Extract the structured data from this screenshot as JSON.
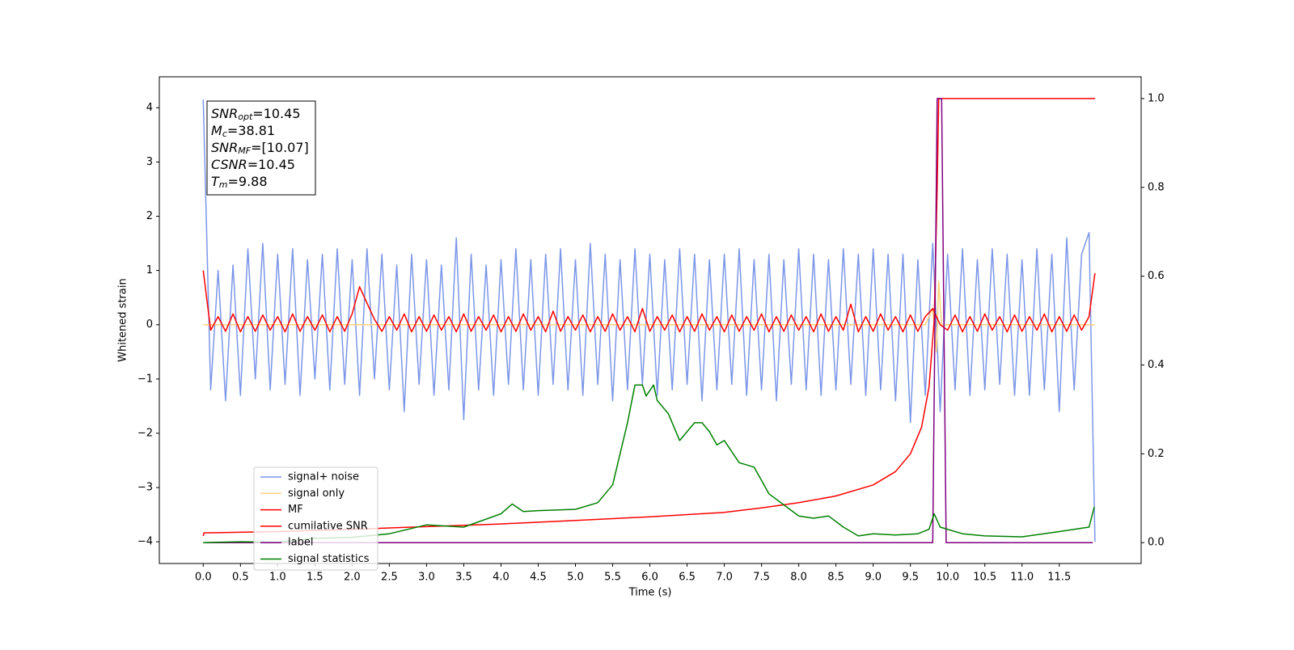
{
  "chart_data": {
    "type": "line",
    "xlabel": "Time (s)",
    "ylabel": "Whitened strain",
    "xlim": [
      -0.59,
      12.6
    ],
    "ylim": [
      -4.4,
      4.57
    ],
    "y2lim": [
      -0.047,
      1.049
    ],
    "xticks": [
      {
        "value": 0,
        "label": "0.0"
      },
      {
        "value": 0.5,
        "label": "0.5"
      },
      {
        "value": 1,
        "label": "1.0"
      },
      {
        "value": 1.5,
        "label": "1.5"
      },
      {
        "value": 2,
        "label": "2.0"
      },
      {
        "value": 2.5,
        "label": "2.5"
      },
      {
        "value": 3,
        "label": "3.0"
      },
      {
        "value": 3.5,
        "label": "3.5"
      },
      {
        "value": 4,
        "label": "4.0"
      },
      {
        "value": 4.5,
        "label": "4.5"
      },
      {
        "value": 5,
        "label": "5.0"
      },
      {
        "value": 5.5,
        "label": "5.5"
      },
      {
        "value": 6,
        "label": "6.0"
      },
      {
        "value": 6.5,
        "label": "6.5"
      },
      {
        "value": 7,
        "label": "7.0"
      },
      {
        "value": 7.5,
        "label": "7.5"
      },
      {
        "value": 8,
        "label": "8.0"
      },
      {
        "value": 8.5,
        "label": "8.5"
      },
      {
        "value": 9,
        "label": "9.0"
      },
      {
        "value": 9.5,
        "label": "9.5"
      },
      {
        "value": 10,
        "label": "10.0"
      },
      {
        "value": 10.5,
        "label": "10.5"
      },
      {
        "value": 11,
        "label": "11.0"
      },
      {
        "value": 11.5,
        "label": "11.5"
      }
    ],
    "yticks": [
      {
        "value": -4,
        "label": "−4"
      },
      {
        "value": -3,
        "label": "−3"
      },
      {
        "value": -2,
        "label": "−2"
      },
      {
        "value": -1,
        "label": "−1"
      },
      0,
      1,
      2,
      3,
      4
    ],
    "y2ticks": [
      {
        "value": 0,
        "label": "0.0"
      },
      {
        "value": 0.2,
        "label": "0.2"
      },
      {
        "value": 0.4,
        "label": "0.4"
      },
      {
        "value": 0.6,
        "label": "0.6"
      },
      {
        "value": 0.8,
        "label": "0.8"
      },
      {
        "value": 1,
        "label": "1.0"
      }
    ],
    "annotations": [
      {
        "base": "SNR",
        "sub": "opt",
        "rest": "=10.45"
      },
      {
        "base": "M",
        "sub": "c",
        "rest": "=38.81"
      },
      {
        "base": "SNR",
        "sub": "MF",
        "rest": "=[10.07]"
      },
      {
        "base": "CSNR",
        "sub": "",
        "rest": "=10.45"
      },
      {
        "base": "T",
        "sub": "m",
        "rest": "=9.88"
      }
    ],
    "series": [
      {
        "name": "signal+ noise",
        "color": "#7b96e8",
        "x": [
          0,
          0.1,
          0.2,
          0.3,
          0.4,
          0.5,
          0.6,
          0.7,
          0.8,
          0.9,
          1,
          1.1,
          1.2,
          1.3,
          1.4,
          1.5,
          1.6,
          1.7,
          1.8,
          1.9,
          2,
          2.1,
          2.2,
          2.3,
          2.4,
          2.5,
          2.6,
          2.7,
          2.8,
          2.9,
          3,
          3.1,
          3.2,
          3.3,
          3.4,
          3.5,
          3.6,
          3.7,
          3.8,
          3.9,
          4,
          4.1,
          4.2,
          4.3,
          4.4,
          4.5,
          4.6,
          4.7,
          4.8,
          4.9,
          5,
          5.1,
          5.2,
          5.3,
          5.4,
          5.5,
          5.6,
          5.7,
          5.8,
          5.9,
          6,
          6.1,
          6.2,
          6.3,
          6.4,
          6.5,
          6.6,
          6.7,
          6.8,
          6.9,
          7,
          7.1,
          7.2,
          7.3,
          7.4,
          7.5,
          7.6,
          7.7,
          7.8,
          7.9,
          8,
          8.1,
          8.2,
          8.3,
          8.4,
          8.5,
          8.6,
          8.7,
          8.8,
          8.9,
          9,
          9.1,
          9.2,
          9.3,
          9.4,
          9.5,
          9.6,
          9.7,
          9.8,
          9.9,
          10,
          10.1,
          10.2,
          10.3,
          10.4,
          10.5,
          10.6,
          10.7,
          10.8,
          10.9,
          11,
          11.1,
          11.2,
          11.3,
          11.4,
          11.5,
          11.6,
          11.7,
          11.8,
          11.9,
          11.98
        ],
        "values": [
          4.15,
          -1.2,
          1.0,
          -1.4,
          1.1,
          -1.3,
          1.4,
          -1.0,
          1.5,
          -1.2,
          1.3,
          -1.1,
          1.4,
          -1.3,
          1.2,
          -1.0,
          1.3,
          -1.2,
          1.4,
          -1.1,
          1.2,
          -1.3,
          1.4,
          -1.0,
          1.3,
          -1.2,
          1.1,
          -1.6,
          1.3,
          -1.1,
          1.2,
          -1.3,
          1.1,
          -1.2,
          1.6,
          -1.75,
          1.3,
          -1.2,
          1.1,
          -1.3,
          1.2,
          -1.1,
          1.4,
          -1.2,
          1.2,
          -1.3,
          1.3,
          -1.1,
          1.4,
          -1.2,
          1.2,
          -1.3,
          1.5,
          -1.1,
          1.3,
          -1.4,
          1.2,
          -1.2,
          1.4,
          -1.1,
          1.3,
          -1.3,
          1.2,
          -1.2,
          1.4,
          -1.1,
          1.3,
          -1.4,
          1.2,
          -1.2,
          1.3,
          -1.1,
          1.4,
          -1.3,
          1.2,
          -1.2,
          1.3,
          -1.4,
          1.2,
          -1.1,
          1.4,
          -1.2,
          1.3,
          -1.3,
          1.2,
          -1.2,
          1.4,
          -1.1,
          1.3,
          -1.3,
          1.4,
          -1.2,
          1.3,
          -1.4,
          1.3,
          -1.8,
          1.2,
          -1.3,
          1.5,
          -1.6,
          1.3,
          -1.2,
          1.4,
          -1.3,
          1.2,
          -1.2,
          1.4,
          -1.1,
          1.3,
          -1.3,
          1.2,
          -1.3,
          1.4,
          -1.2,
          1.3,
          -1.6,
          1.6,
          -1.2,
          1.3,
          1.7,
          -4.0
        ]
      },
      {
        "name": "signal only",
        "color": "#fdd27a",
        "x": [
          0,
          9.7,
          9.8,
          9.85,
          9.88,
          9.92,
          11.98
        ],
        "values": [
          0,
          0,
          0.3,
          -0.5,
          0.8,
          0,
          0
        ]
      },
      {
        "name": "MF",
        "color": "#ff0000",
        "x": [
          0,
          0.1,
          0.2,
          0.3,
          0.4,
          0.5,
          0.6,
          0.7,
          0.8,
          0.9,
          1,
          1.1,
          1.2,
          1.3,
          1.4,
          1.5,
          1.6,
          1.7,
          1.8,
          1.9,
          2,
          2.1,
          2.2,
          2.3,
          2.4,
          2.5,
          2.6,
          2.7,
          2.8,
          2.9,
          3,
          3.1,
          3.2,
          3.3,
          3.4,
          3.5,
          3.6,
          3.7,
          3.8,
          3.9,
          4,
          4.1,
          4.2,
          4.3,
          4.4,
          4.5,
          4.6,
          4.7,
          4.8,
          4.9,
          5,
          5.1,
          5.2,
          5.3,
          5.4,
          5.5,
          5.6,
          5.7,
          5.8,
          5.9,
          6,
          6.1,
          6.2,
          6.3,
          6.4,
          6.5,
          6.6,
          6.7,
          6.8,
          6.9,
          7,
          7.1,
          7.2,
          7.3,
          7.4,
          7.5,
          7.6,
          7.7,
          7.8,
          7.9,
          8,
          8.1,
          8.2,
          8.3,
          8.4,
          8.5,
          8.6,
          8.7,
          8.8,
          8.9,
          9,
          9.1,
          9.2,
          9.3,
          9.4,
          9.5,
          9.6,
          9.7,
          9.8,
          9.9,
          10,
          10.1,
          10.2,
          10.3,
          10.4,
          10.5,
          10.6,
          10.7,
          10.8,
          10.9,
          11,
          11.1,
          11.2,
          11.3,
          11.4,
          11.5,
          11.6,
          11.7,
          11.8,
          11.9,
          11.98
        ],
        "values": [
          1.0,
          -0.1,
          0.15,
          -0.12,
          0.2,
          -0.13,
          0.15,
          -0.12,
          0.18,
          -0.1,
          0.15,
          -0.13,
          0.2,
          -0.12,
          0.15,
          -0.1,
          0.18,
          -0.13,
          0.15,
          -0.12,
          0.2,
          0.7,
          0.4,
          0.1,
          -0.12,
          0.15,
          -0.1,
          0.2,
          -0.13,
          0.15,
          -0.12,
          0.18,
          -0.1,
          0.15,
          -0.13,
          0.2,
          -0.12,
          0.15,
          -0.1,
          0.18,
          -0.13,
          0.15,
          -0.12,
          0.2,
          -0.1,
          0.15,
          -0.13,
          0.25,
          -0.12,
          0.15,
          -0.1,
          0.18,
          -0.13,
          0.15,
          -0.12,
          0.2,
          -0.1,
          0.15,
          -0.13,
          0.3,
          -0.12,
          0.15,
          -0.1,
          0.18,
          -0.13,
          0.15,
          -0.12,
          0.2,
          -0.1,
          0.15,
          -0.13,
          0.18,
          -0.12,
          0.15,
          -0.1,
          0.2,
          -0.13,
          0.15,
          -0.12,
          0.18,
          -0.1,
          0.15,
          -0.13,
          0.2,
          -0.12,
          0.15,
          -0.1,
          0.38,
          -0.13,
          0.15,
          -0.12,
          0.2,
          -0.1,
          0.15,
          -0.13,
          0.18,
          -0.12,
          0.15,
          0.3,
          0.0,
          -0.1,
          0.18,
          -0.13,
          0.15,
          -0.12,
          0.2,
          -0.1,
          0.15,
          -0.13,
          0.18,
          -0.12,
          0.15,
          -0.1,
          0.2,
          -0.13,
          0.15,
          -0.12,
          0.18,
          -0.1,
          0.15,
          0.95
        ]
      },
      {
        "name": "cumilative SNR",
        "color": "#ff0000",
        "axis": "y2",
        "x": [
          0,
          0.01,
          1,
          2,
          3,
          4,
          5,
          6,
          7,
          7.5,
          8,
          8.5,
          9,
          9.3,
          9.5,
          9.65,
          9.75,
          9.82,
          9.86,
          9.88,
          11.98
        ],
        "values": [
          0.015,
          0.022,
          0.025,
          0.03,
          0.036,
          0.042,
          0.05,
          0.058,
          0.068,
          0.078,
          0.09,
          0.105,
          0.13,
          0.16,
          0.2,
          0.26,
          0.35,
          0.5,
          0.8,
          1.0,
          1.0
        ]
      },
      {
        "name": "label",
        "color": "#800080",
        "axis": "y2",
        "x": [
          0,
          9.8,
          9.86,
          9.92,
          9.98,
          11.95
        ],
        "values": [
          0,
          0,
          1,
          1,
          0,
          0
        ]
      },
      {
        "name": "signal statistics",
        "color": "#008000",
        "axis": "y2",
        "x": [
          0,
          0.5,
          1,
          1.5,
          2,
          2.5,
          3,
          3.5,
          4,
          4.15,
          4.3,
          4.5,
          5,
          5.3,
          5.5,
          5.6,
          5.7,
          5.8,
          5.9,
          5.95,
          6.05,
          6.1,
          6.25,
          6.4,
          6.5,
          6.6,
          6.7,
          6.8,
          6.9,
          7,
          7.2,
          7.4,
          7.6,
          7.8,
          8,
          8.2,
          8.4,
          8.6,
          8.8,
          9,
          9.3,
          9.6,
          9.75,
          9.82,
          9.9,
          10.2,
          10.5,
          11,
          11.5,
          11.9,
          11.97
        ],
        "values": [
          0,
          0.002,
          0.001,
          0.01,
          0.012,
          0.02,
          0.04,
          0.035,
          0.065,
          0.087,
          0.07,
          0.072,
          0.075,
          0.09,
          0.13,
          0.2,
          0.27,
          0.355,
          0.355,
          0.33,
          0.355,
          0.32,
          0.29,
          0.23,
          0.25,
          0.27,
          0.27,
          0.25,
          0.22,
          0.23,
          0.18,
          0.17,
          0.11,
          0.085,
          0.06,
          0.055,
          0.06,
          0.035,
          0.015,
          0.02,
          0.017,
          0.02,
          0.03,
          0.065,
          0.035,
          0.02,
          0.015,
          0.013,
          0.025,
          0.035,
          0.08
        ]
      }
    ],
    "legend": "lower left"
  }
}
